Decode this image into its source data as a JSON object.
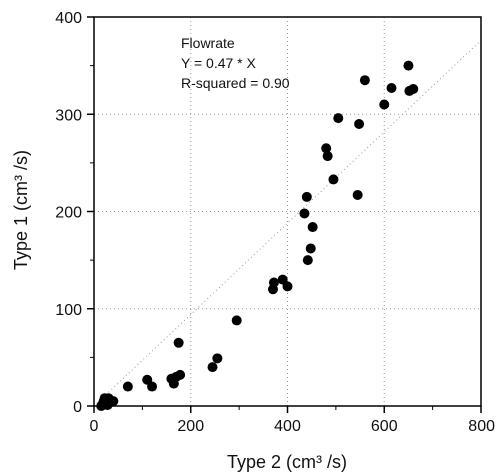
{
  "chart_data": {
    "type": "scatter",
    "title": "",
    "xlabel": "Type 2 (cm³ /s)",
    "ylabel": "Type 1 (cm³ /s)",
    "xlim": [
      0,
      800
    ],
    "ylim": [
      0,
      400
    ],
    "x_ticks": [
      0,
      200,
      400,
      600,
      800
    ],
    "y_ticks": [
      0,
      100,
      200,
      300,
      400
    ],
    "x_minor_ticks": [
      100,
      300,
      500,
      700
    ],
    "y_minor_ticks": [
      50,
      150,
      250,
      350
    ],
    "grid": "dotted",
    "annotation": {
      "lines": [
        "Flowrate",
        "Y = 0.47 * X",
        "R-squared = 0.90"
      ]
    },
    "fit_line": {
      "slope": 0.47,
      "intercept": 0,
      "style": "dotted"
    },
    "colors": {
      "points": "#000000",
      "axes": "#000000",
      "grid": "#9a9a9a"
    },
    "series": [
      {
        "points": [
          [
            15,
            0
          ],
          [
            18,
            2
          ],
          [
            20,
            5
          ],
          [
            22,
            8
          ],
          [
            25,
            3
          ],
          [
            28,
            1
          ],
          [
            30,
            8
          ],
          [
            40,
            5
          ],
          [
            70,
            20
          ],
          [
            110,
            27
          ],
          [
            120,
            20
          ],
          [
            160,
            28
          ],
          [
            165,
            23
          ],
          [
            170,
            30
          ],
          [
            175,
            65
          ],
          [
            178,
            32
          ],
          [
            245,
            40
          ],
          [
            255,
            49
          ],
          [
            295,
            88
          ],
          [
            370,
            120
          ],
          [
            372,
            127
          ],
          [
            390,
            130
          ],
          [
            400,
            123
          ],
          [
            435,
            198
          ],
          [
            440,
            215
          ],
          [
            442,
            150
          ],
          [
            448,
            162
          ],
          [
            452,
            184
          ],
          [
            480,
            265
          ],
          [
            483,
            257
          ],
          [
            495,
            233
          ],
          [
            505,
            296
          ],
          [
            545,
            217
          ],
          [
            548,
            290
          ],
          [
            560,
            335
          ],
          [
            600,
            310
          ],
          [
            615,
            327
          ],
          [
            650,
            350
          ],
          [
            652,
            324
          ],
          [
            660,
            326
          ]
        ]
      }
    ]
  }
}
